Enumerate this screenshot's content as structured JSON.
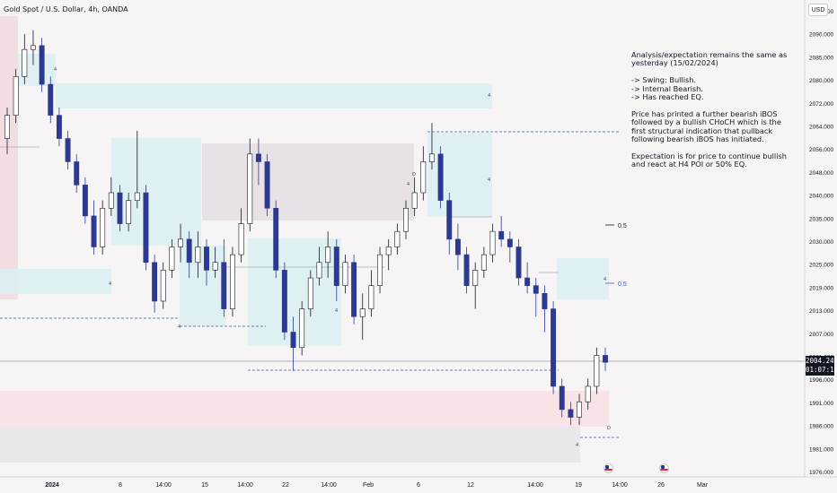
{
  "header": {
    "title": "Gold Spot / U.S. Dollar, 4h, OANDA"
  },
  "currency_button": "USD",
  "last_price": {
    "value": "2004.245",
    "countdown": "01:07:10"
  },
  "notes": {
    "line1": "Analysis/expectation remains the same as yesterday (15/02/2024)",
    "line2": "-> Swing: Bullish.",
    "line3": "-> Internal Bearish.",
    "line4": "-> Has reached EQ.",
    "line5": "Price has printed a further bearish iBOS followed by a bullish CHoCH which is the first structural indication that pullback following bearish iBOS has initiated.",
    "line6": "Expectation is for price to continue bullish and react at H4 POI or 50% EQ."
  },
  "event_icons": [
    "us-flag-icon",
    "us-flag-icon"
  ],
  "chart_data": {
    "type": "candlestick",
    "symbol": "Gold Spot / U.S. Dollar",
    "interval": "4h",
    "source": "OANDA",
    "y_axis": {
      "ticks": [
        "2095.000",
        "2090.000",
        "2085.000",
        "2080.000",
        "2072.000",
        "2064.000",
        "2056.000",
        "2048.000",
        "2040.000",
        "2035.000",
        "2030.000",
        "2025.000",
        "2019.000",
        "2013.000",
        "2007.000",
        "2001.000",
        "1996.000",
        "1991.000",
        "1986.000",
        "1981.000",
        "1976.000"
      ],
      "range": [
        1975,
        2097
      ]
    },
    "x_axis": {
      "ticks": [
        "2024",
        "8",
        "14:00",
        "15",
        "14:00",
        "22",
        "14:00",
        "Feb",
        "6",
        "12",
        "14:00",
        "19",
        "14:00",
        "26",
        "Mar"
      ]
    },
    "levels": [
      {
        "label": "0.5",
        "price": 2041.5
      },
      {
        "label": "0.5",
        "price": 2024.0
      }
    ],
    "zone_marks": [
      "4",
      "4",
      "4",
      "4",
      "4",
      "4",
      "4",
      "4",
      "D",
      "D",
      "4",
      "4"
    ],
    "last_price": 2004.245,
    "candles": [
      [
        2062.0,
        2070.0,
        2058.0,
        2068.0
      ],
      [
        2068.0,
        2080.0,
        2066.0,
        2078.0
      ],
      [
        2078.0,
        2089.0,
        2076.0,
        2085.0
      ],
      [
        2085.0,
        2090.0,
        2081.0,
        2086.0
      ],
      [
        2086.0,
        2088.0,
        2074.0,
        2076.0
      ],
      [
        2076.0,
        2078.0,
        2066.0,
        2068.0
      ],
      [
        2068.0,
        2070.0,
        2060.0,
        2062.0
      ],
      [
        2062.0,
        2064.0,
        2054.0,
        2056.0
      ],
      [
        2056.0,
        2058.0,
        2048.0,
        2050.0
      ],
      [
        2050.0,
        2052.0,
        2040.0,
        2042.0
      ],
      [
        2042.0,
        2046.0,
        2032.0,
        2034.0
      ],
      [
        2034.0,
        2046.0,
        2032.0,
        2044.0
      ],
      [
        2044.0,
        2052.0,
        2042.0,
        2048.0
      ],
      [
        2048.0,
        2050.0,
        2038.0,
        2040.0
      ],
      [
        2040.0,
        2048.0,
        2038.0,
        2046.0
      ],
      [
        2046.0,
        2064.0,
        2044.0,
        2048.0
      ],
      [
        2048.0,
        2050.0,
        2028.0,
        2030.0
      ],
      [
        2030.0,
        2032.0,
        2017.0,
        2020.0
      ],
      [
        2020.0,
        2030.0,
        2018.0,
        2028.0
      ],
      [
        2028.0,
        2036.0,
        2026.0,
        2034.0
      ],
      [
        2034.0,
        2040.0,
        2030.0,
        2036.0
      ],
      [
        2036.0,
        2038.0,
        2026.0,
        2030.0
      ],
      [
        2030.0,
        2038.0,
        2026.0,
        2034.0
      ],
      [
        2034.0,
        2036.0,
        2024.0,
        2028.0
      ],
      [
        2028.0,
        2034.0,
        2026.0,
        2030.0
      ],
      [
        2030.0,
        2036.0,
        2016.0,
        2018.0
      ],
      [
        2018.0,
        2034.0,
        2016.0,
        2032.0
      ],
      [
        2032.0,
        2044.0,
        2030.0,
        2040.0
      ],
      [
        2040.0,
        2062.0,
        2038.0,
        2058.0
      ],
      [
        2058.0,
        2062.0,
        2050.0,
        2056.0
      ],
      [
        2056.0,
        2058.0,
        2042.0,
        2044.0
      ],
      [
        2044.0,
        2046.0,
        2026.0,
        2028.0
      ],
      [
        2028.0,
        2030.0,
        2010.0,
        2012.0
      ],
      [
        2012.0,
        2016.0,
        2002.0,
        2008.0
      ],
      [
        2008.0,
        2020.0,
        2006.0,
        2018.0
      ],
      [
        2018.0,
        2028.0,
        2016.0,
        2026.0
      ],
      [
        2026.0,
        2034.0,
        2024.0,
        2030.0
      ],
      [
        2030.0,
        2038.0,
        2026.0,
        2034.0
      ],
      [
        2034.0,
        2036.0,
        2020.0,
        2024.0
      ],
      [
        2024.0,
        2032.0,
        2022.0,
        2030.0
      ],
      [
        2030.0,
        2032.0,
        2014.0,
        2016.0
      ],
      [
        2016.0,
        2022.0,
        2010.0,
        2018.0
      ],
      [
        2018.0,
        2028.0,
        2016.0,
        2024.0
      ],
      [
        2024.0,
        2034.0,
        2022.0,
        2032.0
      ],
      [
        2032.0,
        2036.0,
        2028.0,
        2034.0
      ],
      [
        2034.0,
        2040.0,
        2032.0,
        2038.0
      ],
      [
        2038.0,
        2046.0,
        2036.0,
        2044.0
      ],
      [
        2044.0,
        2052.0,
        2042.0,
        2048.0
      ],
      [
        2048.0,
        2060.0,
        2046.0,
        2056.0
      ],
      [
        2056.0,
        2066.0,
        2054.0,
        2058.0
      ],
      [
        2058.0,
        2060.0,
        2044.0,
        2046.0
      ],
      [
        2046.0,
        2048.0,
        2032.0,
        2036.0
      ],
      [
        2036.0,
        2040.0,
        2028.0,
        2032.0
      ],
      [
        2032.0,
        2034.0,
        2022.0,
        2024.0
      ],
      [
        2024.0,
        2030.0,
        2018.0,
        2028.0
      ],
      [
        2028.0,
        2034.0,
        2026.0,
        2032.0
      ],
      [
        2032.0,
        2040.0,
        2030.0,
        2038.0
      ],
      [
        2038.0,
        2042.0,
        2034.0,
        2036.0
      ],
      [
        2036.0,
        2038.0,
        2030.0,
        2034.0
      ],
      [
        2034.0,
        2036.0,
        2024.0,
        2026.0
      ],
      [
        2026.0,
        2030.0,
        2022.0,
        2024.0
      ],
      [
        2024.0,
        2026.0,
        2016.0,
        2022.0
      ],
      [
        2022.0,
        2024.0,
        2012.0,
        2018.0
      ],
      [
        2018.0,
        2020.0,
        1996.0,
        1998.0
      ],
      [
        1998.0,
        2000.0,
        1990.0,
        1992.0
      ],
      [
        1992.0,
        1994.0,
        1988.0,
        1990.0
      ],
      [
        1990.0,
        1996.0,
        1988.0,
        1994.0
      ],
      [
        1994.0,
        2000.0,
        1992.0,
        1998.0
      ],
      [
        1998.0,
        2008.0,
        1996.0,
        2006.0
      ],
      [
        2006.0,
        2008.0,
        2002.0,
        2004.2
      ]
    ]
  }
}
